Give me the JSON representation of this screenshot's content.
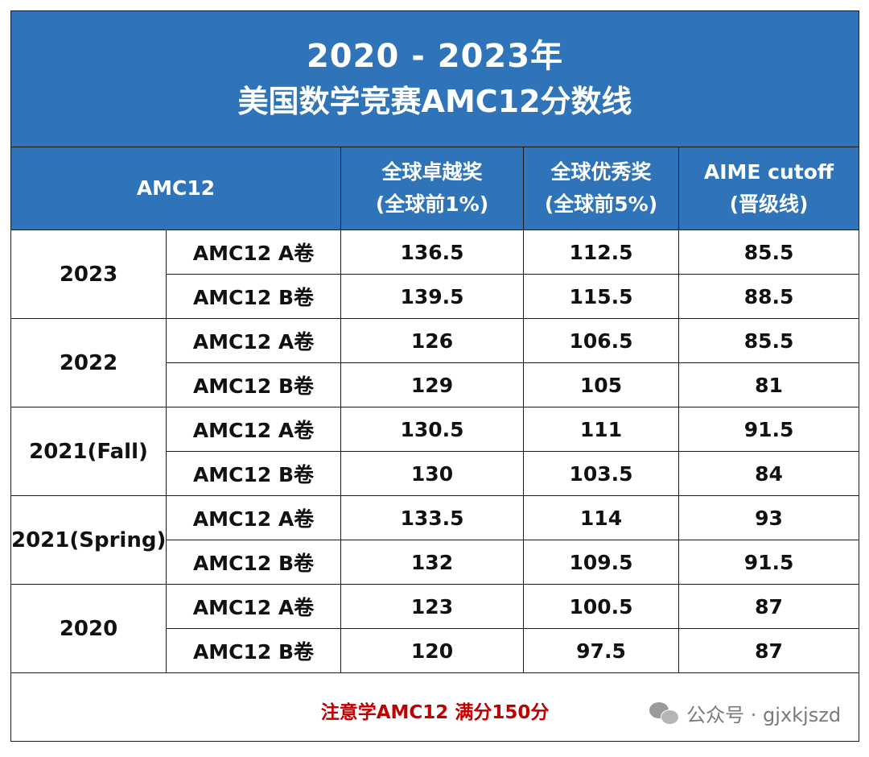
{
  "title": {
    "line1": "2020 - 2023年",
    "line2": "美国数学竞赛AMC12分数线"
  },
  "header": {
    "col_exam": "AMC12",
    "col_excellence_line1": "全球卓越奖",
    "col_excellence_line2": "(全球前1%)",
    "col_distinction_line1": "全球优秀奖",
    "col_distinction_line2": "(全球前5%)",
    "col_aime_line1": "AIME cutoff",
    "col_aime_line2": "(晋级线)"
  },
  "years": [
    {
      "year": "2023",
      "rows": [
        {
          "paper": "AMC12 A卷",
          "excellence": "136.5",
          "distinction": "112.5",
          "aime": "85.5"
        },
        {
          "paper": "AMC12 B卷",
          "excellence": "139.5",
          "distinction": "115.5",
          "aime": "88.5"
        }
      ]
    },
    {
      "year": "2022",
      "rows": [
        {
          "paper": "AMC12 A卷",
          "excellence": "126",
          "distinction": "106.5",
          "aime": "85.5"
        },
        {
          "paper": "AMC12 B卷",
          "excellence": "129",
          "distinction": "105",
          "aime": "81"
        }
      ]
    },
    {
      "year": "2021(Fall)",
      "rows": [
        {
          "paper": "AMC12 A卷",
          "excellence": "130.5",
          "distinction": "111",
          "aime": "91.5"
        },
        {
          "paper": "AMC12 B卷",
          "excellence": "130",
          "distinction": "103.5",
          "aime": "84"
        }
      ]
    },
    {
      "year": "2021(Spring)",
      "rows": [
        {
          "paper": "AMC12 A卷",
          "excellence": "133.5",
          "distinction": "114",
          "aime": "93"
        },
        {
          "paper": "AMC12 B卷",
          "excellence": "132",
          "distinction": "109.5",
          "aime": "91.5"
        }
      ]
    },
    {
      "year": "2020",
      "rows": [
        {
          "paper": "AMC12 A卷",
          "excellence": "123",
          "distinction": "100.5",
          "aime": "87"
        },
        {
          "paper": "AMC12 B卷",
          "excellence": "120",
          "distinction": "97.5",
          "aime": "87"
        }
      ]
    }
  ],
  "note": "注意学AMC12 满分150分",
  "watermark": {
    "icon": "wechat-icon",
    "text": "公众号 · gjxkjszd"
  },
  "colors": {
    "header_bg": "#2f74b8",
    "note_text": "#c00000"
  }
}
